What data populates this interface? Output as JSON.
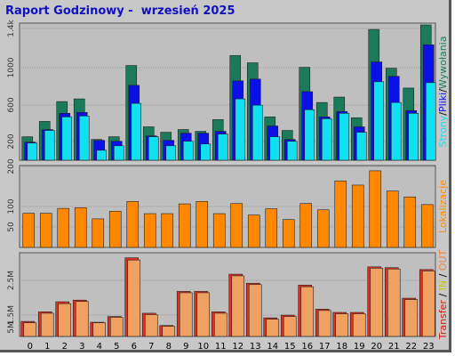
{
  "title": "Raport Godzinowy -  wrzesień 2025",
  "colors": {
    "strony": "#1a7a5a",
    "pliki": "#0a10e6",
    "wywolania": "#10e0f0",
    "lokalizacje": "#ff8800",
    "transfer_in": "#e03020",
    "transfer_out": "#f0a060",
    "background": "#c8c8c8",
    "panel": "#bfbfbf",
    "grid": "#999999"
  },
  "chart_data": [
    {
      "type": "bar",
      "name": "hits",
      "categories": [
        "0",
        "1",
        "2",
        "3",
        "4",
        "5",
        "6",
        "7",
        "8",
        "9",
        "10",
        "11",
        "12",
        "13",
        "14",
        "15",
        "16",
        "17",
        "18",
        "19",
        "20",
        "21",
        "22",
        "23"
      ],
      "ylabel_parts": [
        "Strony",
        "Pliki",
        "Wywołania"
      ],
      "ylabel_separator": "/",
      "yticks": [
        "200",
        "600",
        "1000",
        "1.4k"
      ],
      "ylim": [
        0,
        1500
      ],
      "grid": true,
      "series": [
        {
          "name": "Strony",
          "values": [
            260,
            430,
            650,
            680,
            230,
            260,
            1050,
            370,
            310,
            340,
            320,
            450,
            1160,
            1080,
            480,
            330,
            1030,
            640,
            700,
            470,
            1450,
            1020,
            800,
            1500
          ]
        },
        {
          "name": "Pliki",
          "values": [
            200,
            340,
            520,
            530,
            220,
            210,
            830,
            270,
            220,
            300,
            300,
            320,
            880,
            900,
            380,
            230,
            760,
            480,
            540,
            370,
            1090,
            930,
            550,
            1280
          ]
        },
        {
          "name": "Wywołania",
          "values": [
            190,
            330,
            480,
            490,
            110,
            160,
            630,
            260,
            160,
            210,
            180,
            290,
            680,
            610,
            260,
            210,
            560,
            460,
            520,
            310,
            870,
            640,
            520,
            860
          ]
        }
      ]
    },
    {
      "type": "bar",
      "name": "locations",
      "categories": [
        "0",
        "1",
        "2",
        "3",
        "4",
        "5",
        "6",
        "7",
        "8",
        "9",
        "10",
        "11",
        "12",
        "13",
        "14",
        "15",
        "16",
        "17",
        "18",
        "19",
        "20",
        "21",
        "22",
        "23"
      ],
      "ylabel": "Lokalizacje",
      "yticks": [
        "50",
        "100",
        "200"
      ],
      "ylim": [
        0,
        230
      ],
      "grid": true,
      "series": [
        {
          "name": "Lokalizacje",
          "values": [
            98,
            98,
            112,
            114,
            82,
            104,
            132,
            97,
            97,
            125,
            132,
            97,
            126,
            93,
            111,
            80,
            126,
            108,
            191,
            179,
            220,
            162,
            145,
            123
          ]
        }
      ]
    },
    {
      "type": "bar",
      "name": "transfer",
      "categories": [
        "0",
        "1",
        "2",
        "3",
        "4",
        "5",
        "6",
        "7",
        "8",
        "9",
        "10",
        "11",
        "12",
        "13",
        "14",
        "15",
        "16",
        "17",
        "18",
        "19",
        "20",
        "21",
        "22",
        "23"
      ],
      "ylabel_parts": [
        "Transfer",
        "IN",
        "OUT"
      ],
      "ylabel_separator": " / ",
      "yticks": [
        "5M",
        "1.5M",
        "2.5M"
      ],
      "ylim": [
        0,
        3.0
      ],
      "grid": true,
      "series": [
        {
          "name": "IN",
          "values": [
            0.55,
            0.9,
            1.27,
            1.33,
            0.52,
            0.73,
            2.88,
            0.85,
            0.4,
            1.65,
            1.65,
            0.9,
            2.28,
            1.95,
            0.68,
            0.78,
            1.88,
            1.0,
            0.88,
            0.88,
            2.55,
            2.52,
            1.4,
            2.45
          ]
        },
        {
          "name": "OUT",
          "values": [
            0.5,
            0.85,
            1.2,
            1.28,
            0.5,
            0.7,
            2.8,
            0.8,
            0.37,
            1.6,
            1.6,
            0.85,
            2.22,
            1.9,
            0.63,
            0.73,
            1.82,
            0.95,
            0.83,
            0.83,
            2.5,
            2.47,
            1.35,
            2.4
          ]
        }
      ]
    }
  ]
}
